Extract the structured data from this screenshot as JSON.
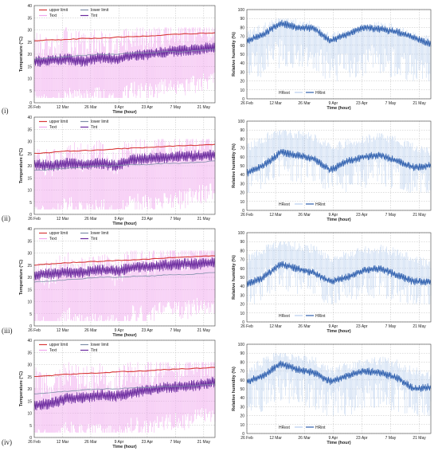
{
  "rows": [
    {
      "label": "(i)"
    },
    {
      "label": "(ii)"
    },
    {
      "label": "(iii)"
    },
    {
      "label": "(iv)"
    }
  ],
  "colors": {
    "upper_limit": "#d83a3a",
    "lower_limit": "#7f8fa8",
    "text_temp": "#f0a8ee",
    "tint": "#6a2a9e",
    "hr_ext": "#b9cfee",
    "hr_int": "#2e5fae",
    "grid": "#bdbdbd",
    "axis": "#444444"
  },
  "chart_data": [
    {
      "id": "i-temperature",
      "type": "line",
      "xlabel": "Time (hour)",
      "ylabel": "Temperature (°C)",
      "xticks": [
        "26 Feb",
        "12 Mar",
        "26 Mar",
        "9 Apr",
        "23 Apr",
        "7 May",
        "21 May"
      ],
      "ylim": [
        0,
        40
      ],
      "yticks": [
        0,
        5,
        10,
        15,
        20,
        25,
        30,
        35,
        40
      ],
      "grid": true,
      "legend": [
        "upper limit",
        "lower limit",
        "Text",
        "Tint"
      ],
      "legend_position": "top-left",
      "series": [
        {
          "name": "upper limit",
          "values": [
            25.5,
            25.8,
            26.0,
            26.5,
            26.5,
            27.0,
            27.2,
            27.5,
            28.0,
            28.3,
            28.5,
            28.8
          ]
        },
        {
          "name": "lower limit",
          "values": [
            18.0,
            18.5,
            19.0,
            19.5,
            20.0,
            20.0,
            20.5,
            20.5,
            21.0,
            21.0,
            21.5,
            22.0
          ]
        },
        {
          "name": "Text",
          "values": [
            12,
            8,
            14,
            11,
            13,
            10,
            15,
            14,
            17,
            16,
            18,
            19
          ],
          "range": [
            2,
            31
          ]
        },
        {
          "name": "Tint",
          "values": [
            17.0,
            17.5,
            18.0,
            17.0,
            18.5,
            18.0,
            19.5,
            20.0,
            21.0,
            21.5,
            22.0,
            23.0
          ]
        }
      ]
    },
    {
      "id": "i-humidity",
      "type": "line",
      "xlabel": "Time (hour)",
      "ylabel": "Relative humidity (%)",
      "xticks": [
        "26 Feb",
        "12 Mar",
        "26 Mar",
        "9 Apr",
        "23 Apr",
        "7 May",
        "21 May"
      ],
      "ylim": [
        0,
        100
      ],
      "yticks": [
        0,
        10,
        20,
        30,
        40,
        50,
        60,
        70,
        80,
        90,
        100
      ],
      "grid": true,
      "legend": [
        "HRext",
        "HRint"
      ],
      "legend_position": "bottom-center",
      "series": [
        {
          "name": "HRext",
          "values": [
            62,
            70,
            80,
            75,
            72,
            60,
            65,
            70,
            72,
            68,
            60,
            55
          ],
          "range": [
            20,
            90
          ]
        },
        {
          "name": "HRint",
          "values": [
            65,
            72,
            85,
            80,
            79,
            65,
            72,
            80,
            78,
            75,
            68,
            62
          ]
        }
      ]
    },
    {
      "id": "ii-temperature",
      "type": "line",
      "xlabel": "Time (hour)",
      "ylabel": "Temperature (°C)",
      "xticks": [
        "26 Feb",
        "12 Mar",
        "26 Mar",
        "9 Apr",
        "23 Apr",
        "7 May",
        "21 May"
      ],
      "ylim": [
        0,
        40
      ],
      "yticks": [
        0,
        5,
        10,
        15,
        20,
        25,
        30,
        35,
        40
      ],
      "grid": true,
      "legend": [
        "upper limit",
        "lower limit",
        "Text",
        "Tint"
      ],
      "legend_position": "top-left",
      "series": [
        {
          "name": "upper limit",
          "values": [
            25.0,
            25.5,
            26.0,
            26.3,
            26.5,
            27.0,
            27.2,
            27.5,
            28.0,
            28.2,
            28.5,
            28.8
          ]
        },
        {
          "name": "lower limit",
          "values": [
            18.0,
            18.5,
            19.0,
            19.5,
            20.0,
            20.0,
            20.5,
            20.5,
            21.0,
            21.0,
            21.5,
            22.0
          ]
        },
        {
          "name": "Text",
          "values": [
            12,
            8,
            14,
            11,
            13,
            10,
            15,
            14,
            17,
            16,
            18,
            19
          ],
          "range": [
            2,
            31
          ]
        },
        {
          "name": "Tint",
          "values": [
            20.5,
            20.0,
            21.0,
            20.5,
            21.0,
            20.0,
            22.5,
            23.0,
            23.5,
            24.0,
            24.0,
            24.5
          ]
        }
      ]
    },
    {
      "id": "ii-humidity",
      "type": "line",
      "xlabel": "Time (hour)",
      "ylabel": "Relative humidity (%)",
      "xticks": [
        "26 Feb",
        "12 Mar",
        "26 Mar",
        "9 Apr",
        "23 Apr",
        "7 May",
        "21 May"
      ],
      "ylim": [
        0,
        100
      ],
      "yticks": [
        0,
        10,
        20,
        30,
        40,
        50,
        60,
        70,
        80,
        90,
        100
      ],
      "grid": true,
      "legend": [
        "HRext",
        "HRint"
      ],
      "legend_position": "bottom-center",
      "series": [
        {
          "name": "HRext",
          "values": [
            60,
            70,
            80,
            75,
            72,
            60,
            65,
            70,
            72,
            68,
            60,
            55
          ],
          "range": [
            20,
            90
          ]
        },
        {
          "name": "HRint",
          "values": [
            42,
            50,
            65,
            62,
            58,
            45,
            55,
            60,
            62,
            55,
            48,
            50
          ]
        }
      ]
    },
    {
      "id": "iii-temperature",
      "type": "line",
      "xlabel": "Time (hour)",
      "ylabel": "Temperature (°C)",
      "xticks": [
        "26 Feb",
        "12 Mar",
        "26 Mar",
        "9 Apr",
        "23 Apr",
        "7 May",
        "21 May"
      ],
      "ylim": [
        0,
        40
      ],
      "yticks": [
        0,
        5,
        10,
        15,
        20,
        25,
        30,
        35,
        40
      ],
      "grid": true,
      "legend": [
        "upper limit",
        "lower limit",
        "Text",
        "Tint"
      ],
      "legend_position": "top-left",
      "series": [
        {
          "name": "upper limit",
          "values": [
            25.0,
            25.5,
            26.0,
            26.3,
            26.5,
            27.0,
            27.2,
            27.5,
            28.0,
            28.2,
            28.5,
            28.8
          ]
        },
        {
          "name": "lower limit",
          "values": [
            18.0,
            18.5,
            19.0,
            19.5,
            20.0,
            20.0,
            20.5,
            20.5,
            21.0,
            21.0,
            21.5,
            22.0
          ]
        },
        {
          "name": "Text",
          "values": [
            12,
            8,
            14,
            11,
            13,
            10,
            15,
            14,
            17,
            16,
            18,
            19
          ],
          "range": [
            2,
            31
          ]
        },
        {
          "name": "Tint",
          "values": [
            21.0,
            21.5,
            22.0,
            22.0,
            23.0,
            22.5,
            24.0,
            24.5,
            25.0,
            25.5,
            25.5,
            26.0
          ]
        }
      ]
    },
    {
      "id": "iii-humidity",
      "type": "line",
      "xlabel": "Time (hour)",
      "ylabel": "Relative humidity (%)",
      "xticks": [
        "26 Feb",
        "12 Mar",
        "26 Mar",
        "9 Apr",
        "23 Apr",
        "7 May",
        "21 May"
      ],
      "ylim": [
        0,
        100
      ],
      "yticks": [
        0,
        10,
        20,
        30,
        40,
        50,
        60,
        70,
        80,
        90,
        100
      ],
      "grid": true,
      "legend": [
        "HRext",
        "HRint"
      ],
      "legend_position": "bottom-center",
      "series": [
        {
          "name": "HRext",
          "values": [
            60,
            70,
            80,
            75,
            72,
            60,
            65,
            70,
            72,
            68,
            60,
            55
          ],
          "range": [
            20,
            90
          ]
        },
        {
          "name": "HRint",
          "values": [
            42,
            50,
            65,
            60,
            55,
            45,
            50,
            58,
            60,
            52,
            45,
            45
          ]
        }
      ]
    },
    {
      "id": "iv-temperature",
      "type": "line",
      "xlabel": "Time (hour)",
      "ylabel": "Temperature (°C)",
      "xticks": [
        "26 Feb",
        "12 Mar",
        "26 Mar",
        "9 Apr",
        "23 Apr",
        "7 May",
        "21 May"
      ],
      "ylim": [
        0,
        40
      ],
      "yticks": [
        0,
        5,
        10,
        15,
        20,
        25,
        30,
        35,
        40
      ],
      "grid": true,
      "legend": [
        "upper limit",
        "lower limit",
        "Text",
        "Tint"
      ],
      "legend_position": "top-left",
      "series": [
        {
          "name": "upper limit",
          "values": [
            25.0,
            25.5,
            26.0,
            26.3,
            26.5,
            27.0,
            27.2,
            27.5,
            28.0,
            28.2,
            28.5,
            28.8
          ]
        },
        {
          "name": "lower limit",
          "values": [
            18.0,
            18.5,
            19.0,
            19.5,
            20.0,
            20.0,
            20.5,
            20.5,
            21.0,
            21.0,
            21.5,
            22.0
          ]
        },
        {
          "name": "Text",
          "values": [
            12,
            8,
            14,
            11,
            13,
            10,
            15,
            14,
            17,
            16,
            18,
            19
          ],
          "range": [
            2,
            31
          ]
        },
        {
          "name": "Tint",
          "values": [
            13.0,
            14.0,
            16.0,
            16.5,
            17.5,
            17.0,
            18.5,
            19.5,
            20.5,
            21.0,
            21.5,
            23.0
          ]
        }
      ]
    },
    {
      "id": "iv-humidity",
      "type": "line",
      "xlabel": "Time (hour)",
      "ylabel": "Relative humidity (%)",
      "xticks": [
        "26 Feb",
        "12 Mar",
        "26 Mar",
        "9 Apr",
        "23 Apr",
        "7 May",
        "21 May"
      ],
      "ylim": [
        0,
        100
      ],
      "yticks": [
        0,
        10,
        20,
        30,
        40,
        50,
        60,
        70,
        80,
        90,
        100
      ],
      "grid": true,
      "legend": [
        "HRext",
        "HRint"
      ],
      "legend_position": "bottom-center",
      "series": [
        {
          "name": "HRext",
          "values": [
            60,
            70,
            80,
            75,
            72,
            60,
            65,
            70,
            72,
            68,
            60,
            55
          ],
          "range": [
            20,
            90
          ]
        },
        {
          "name": "HRint",
          "values": [
            58,
            65,
            78,
            72,
            68,
            58,
            65,
            70,
            68,
            62,
            50,
            52
          ]
        }
      ]
    }
  ]
}
